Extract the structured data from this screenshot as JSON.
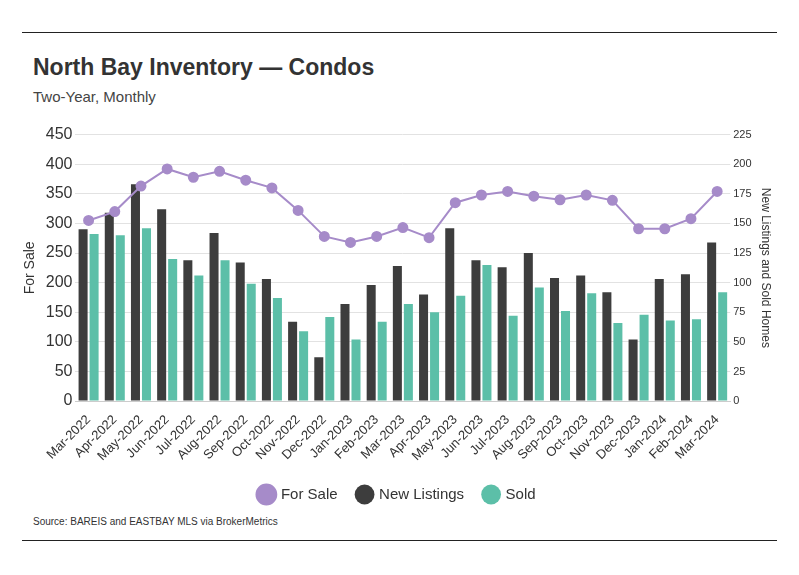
{
  "chart_data": {
    "type": "bar",
    "title": "North Bay Inventory — Condos",
    "subtitle": "Two-Year, Monthly",
    "source": "Source: BAREIS and EASTBAY MLS via BrokerMetrics",
    "y_label": "For Sale",
    "y2_label": "New Listings and Sold Homes",
    "categories": [
      "Mar-2022",
      "Apr-2022",
      "May-2022",
      "Jun-2022",
      "Jul-2022",
      "Aug-2022",
      "Sep-2022",
      "Oct-2022",
      "Nov-2022",
      "Dec-2022",
      "Jan-2023",
      "Feb-2023",
      "Mar-2023",
      "Apr-2023",
      "May-2023",
      "Jun-2023",
      "Jul-2023",
      "Aug-2023",
      "Sep-2023",
      "Oct-2023",
      "Nov-2023",
      "Dec-2023",
      "Jan-2024",
      "Feb-2024",
      "Mar-2024"
    ],
    "series": [
      {
        "name": "For Sale",
        "type": "line",
        "marker": "circle",
        "color": "#a68bc9",
        "axis": "y",
        "values": [
          305,
          320,
          363,
          392,
          378,
          388,
          373,
          360,
          322,
          278,
          268,
          278,
          293,
          276,
          335,
          348,
          354,
          346,
          340,
          348,
          339,
          291,
          291,
          308,
          354
        ]
      },
      {
        "name": "New Listings",
        "type": "bar",
        "color": "#3d3d3d",
        "axis": "y2",
        "values": [
          145,
          159,
          183,
          162,
          119,
          142,
          117,
          103,
          67,
          37,
          82,
          98,
          114,
          90,
          146,
          119,
          113,
          125,
          104,
          106,
          92,
          52,
          103,
          107,
          134
        ]
      },
      {
        "name": "Sold",
        "type": "bar",
        "color": "#5cbfa8",
        "axis": "y2",
        "values": [
          141,
          140,
          146,
          120,
          106,
          119,
          99,
          87,
          59,
          71,
          52,
          67,
          82,
          75,
          89,
          115,
          72,
          96,
          76,
          91,
          66,
          73,
          68,
          69,
          92
        ]
      }
    ],
    "ylim": [
      0,
      450
    ],
    "yticks": [
      0,
      50,
      100,
      150,
      200,
      250,
      300,
      350,
      400,
      450
    ],
    "y2lim": [
      0,
      225
    ],
    "y2ticks": [
      0,
      25,
      50,
      75,
      100,
      125,
      150,
      175,
      200,
      225
    ],
    "grid": true,
    "legend": "bottom"
  }
}
